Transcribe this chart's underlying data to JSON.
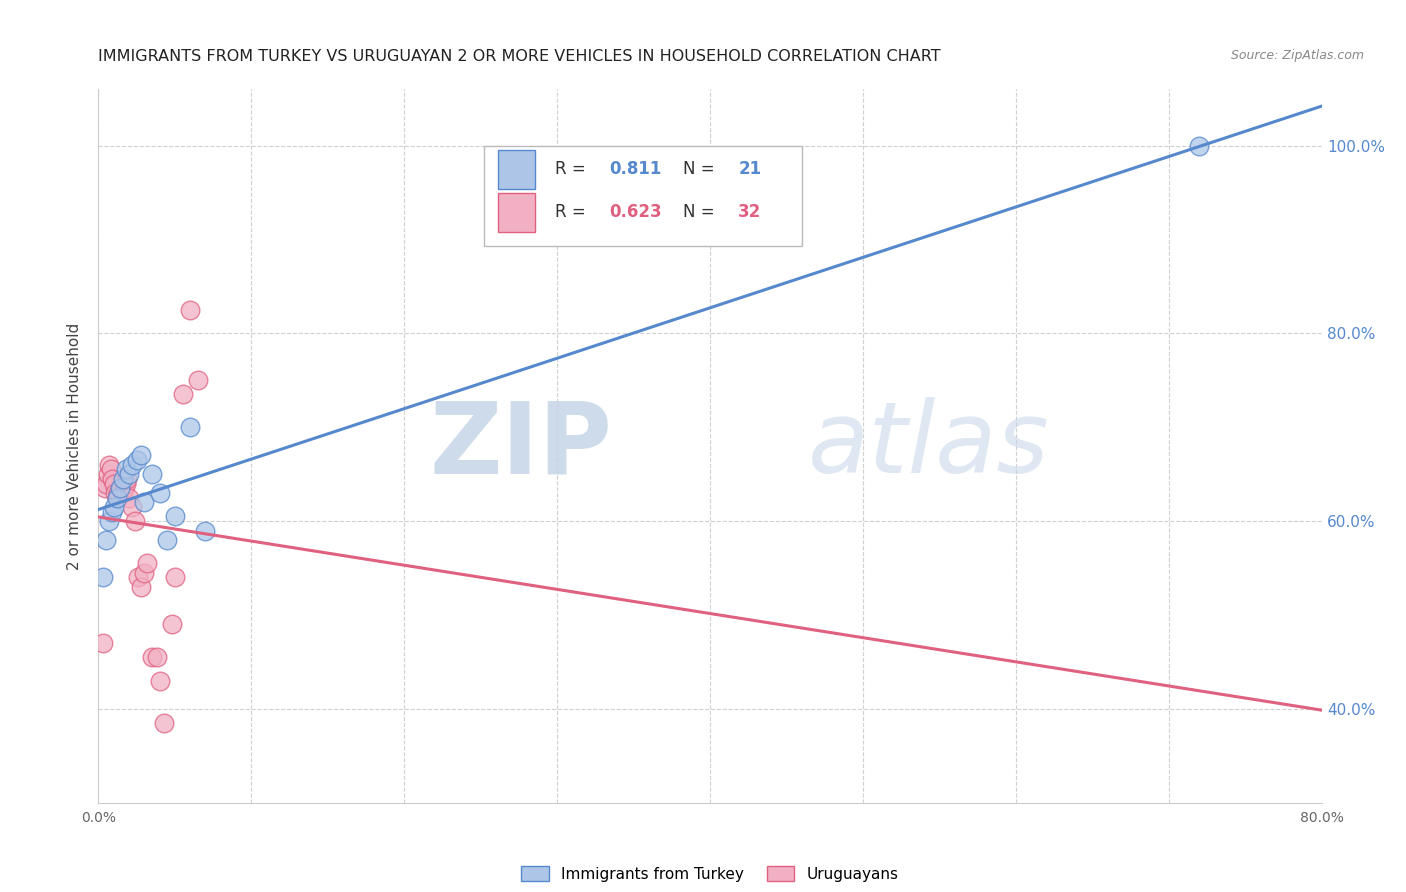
{
  "title": "IMMIGRANTS FROM TURKEY VS URUGUAYAN 2 OR MORE VEHICLES IN HOUSEHOLD CORRELATION CHART",
  "source": "Source: ZipAtlas.com",
  "ylabel": "2 or more Vehicles in Household",
  "xlim": [
    0.0,
    0.8
  ],
  "ylim": [
    0.3,
    1.06
  ],
  "xtick_positions": [
    0.0,
    0.1,
    0.2,
    0.3,
    0.4,
    0.5,
    0.6,
    0.7,
    0.8
  ],
  "xticklabels": [
    "0.0%",
    "",
    "",
    "",
    "",
    "",
    "",
    "",
    "80.0%"
  ],
  "yticks": [
    0.4,
    0.6,
    0.8,
    1.0
  ],
  "yticklabels": [
    "40.0%",
    "60.0%",
    "80.0%",
    "100.0%"
  ],
  "legend_blue_label": "Immigrants from Turkey",
  "legend_pink_label": "Uruguayans",
  "R_blue": "0.811",
  "N_blue": "21",
  "R_pink": "0.623",
  "N_pink": "32",
  "blue_fill": "#adc6e8",
  "pink_fill": "#f2b0c4",
  "blue_edge": "#5588cc",
  "pink_edge": "#e06080",
  "blue_line": "#5588cc",
  "pink_line": "#e06080",
  "watermark_zip": "ZIP",
  "watermark_atlas": "atlas",
  "blue_scatter_x": [
    0.003,
    0.005,
    0.007,
    0.009,
    0.01,
    0.012,
    0.014,
    0.016,
    0.018,
    0.02,
    0.022,
    0.025,
    0.028,
    0.03,
    0.035,
    0.04,
    0.045,
    0.05,
    0.06,
    0.07,
    0.72
  ],
  "blue_scatter_y": [
    0.54,
    0.58,
    0.6,
    0.61,
    0.615,
    0.625,
    0.635,
    0.645,
    0.655,
    0.65,
    0.66,
    0.665,
    0.67,
    0.62,
    0.65,
    0.63,
    0.58,
    0.605,
    0.7,
    0.59,
    1.0
  ],
  "pink_scatter_x": [
    0.003,
    0.004,
    0.005,
    0.006,
    0.007,
    0.008,
    0.009,
    0.01,
    0.011,
    0.012,
    0.013,
    0.015,
    0.016,
    0.017,
    0.018,
    0.019,
    0.02,
    0.022,
    0.024,
    0.026,
    0.028,
    0.03,
    0.032,
    0.035,
    0.038,
    0.04,
    0.043,
    0.048,
    0.05,
    0.055,
    0.06,
    0.065
  ],
  "pink_scatter_y": [
    0.47,
    0.635,
    0.64,
    0.65,
    0.66,
    0.655,
    0.645,
    0.64,
    0.63,
    0.625,
    0.63,
    0.635,
    0.63,
    0.635,
    0.64,
    0.645,
    0.625,
    0.615,
    0.6,
    0.54,
    0.53,
    0.545,
    0.555,
    0.455,
    0.455,
    0.43,
    0.385,
    0.49,
    0.54,
    0.735,
    0.825,
    0.75
  ],
  "background_color": "#ffffff",
  "grid_color": "#d0d0d0"
}
